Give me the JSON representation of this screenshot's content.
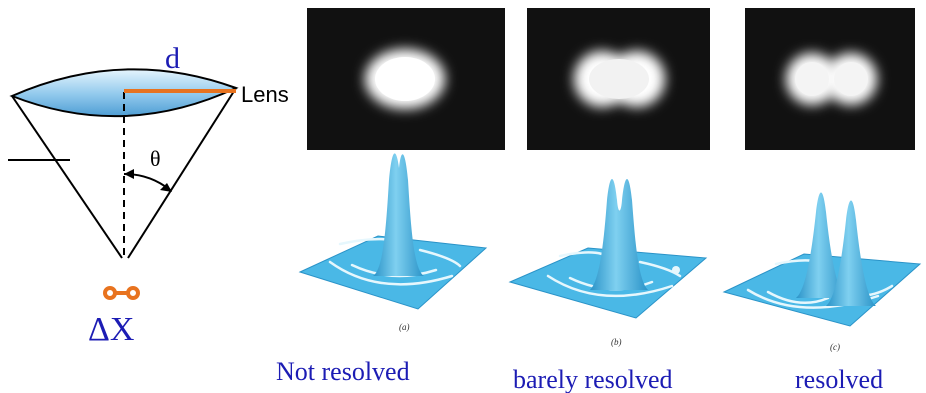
{
  "colors": {
    "background": "#ffffff",
    "lens_fill": "#8fc8ec",
    "lens_fill_dark": "#5aa6d8",
    "aperture_line": "#e8731f",
    "dx_symbol": "#e8731f",
    "label_blue": "#1c1cb4",
    "surface": "#4ab8e6",
    "surface_dark": "#2a93c8",
    "ring": "#dff3fb",
    "photo_bg": "#111111"
  },
  "lens_diagram": {
    "d_label": "d",
    "lens_label": "Lens",
    "theta_label": "θ",
    "dx_label": "ΔX"
  },
  "panels": [
    {
      "letter": "(a)",
      "caption": "Not resolved"
    },
    {
      "letter": "(b)",
      "caption": "barely resolved"
    },
    {
      "letter": "(c)",
      "caption": "resolved"
    }
  ]
}
